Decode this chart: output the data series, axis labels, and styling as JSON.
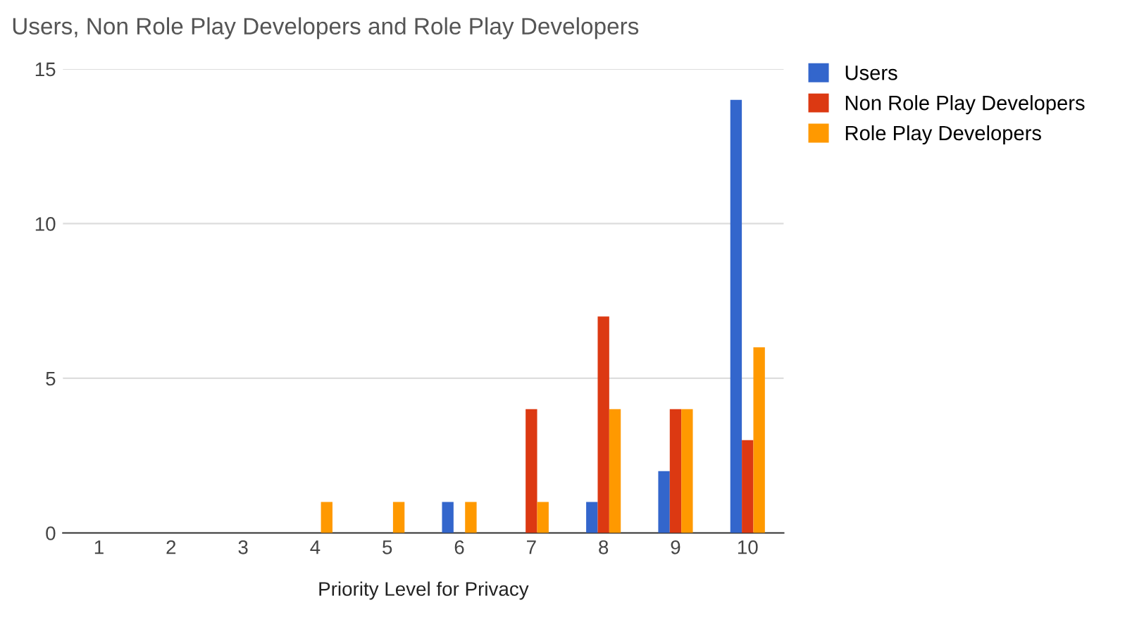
{
  "chart_data": {
    "type": "bar",
    "title": "Users, Non Role Play Developers and Role Play Developers",
    "xlabel": "Priority Level for Privacy",
    "categories": [
      "1",
      "2",
      "3",
      "4",
      "5",
      "6",
      "7",
      "8",
      "9",
      "10"
    ],
    "series": [
      {
        "name": "Users",
        "color": "#3366cc",
        "values": [
          0,
          0,
          0,
          0,
          0,
          1,
          0,
          1,
          2,
          14
        ]
      },
      {
        "name": "Non Role Play Developers",
        "color": "#dc3912",
        "values": [
          0,
          0,
          0,
          0,
          0,
          0,
          4,
          7,
          4,
          3
        ]
      },
      {
        "name": "Role Play Developers",
        "color": "#ff9900",
        "values": [
          0,
          0,
          0,
          1,
          1,
          1,
          1,
          4,
          4,
          6
        ]
      }
    ],
    "ylim": [
      0,
      15
    ],
    "yticks": [
      0,
      5,
      10,
      15
    ],
    "grid": "y",
    "legend": "top right"
  }
}
